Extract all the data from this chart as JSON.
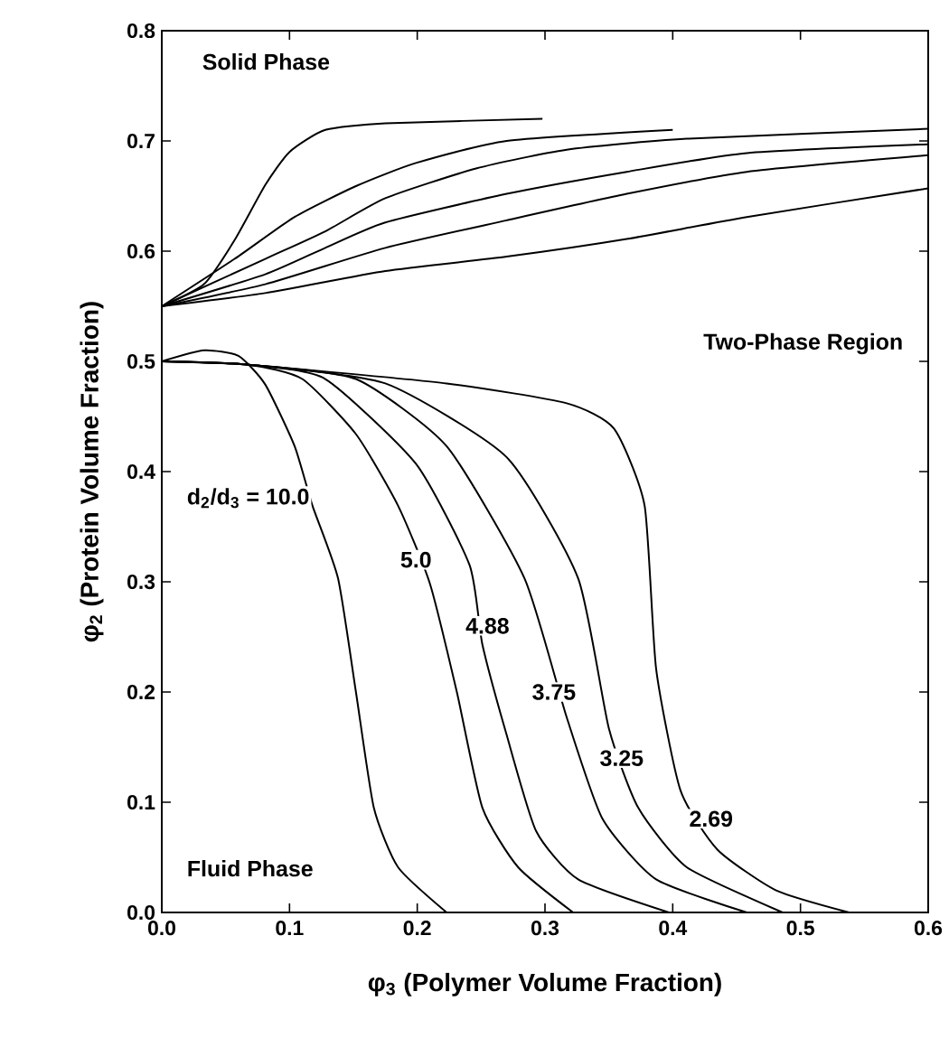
{
  "chart_data": {
    "type": "line",
    "xlabel": "φ$_{3}$ (Polymer Volume Fraction)",
    "ylabel": "φ$_{2}$ (Protein Volume Fraction)",
    "xlim": [
      0,
      0.6
    ],
    "ylim": [
      0,
      0.8
    ],
    "xticks": [
      {
        "value": 0,
        "label": "0.0"
      },
      0.1,
      0.2,
      0.3,
      0.4,
      0.5,
      0.6
    ],
    "yticks": [
      {
        "value": 0,
        "label": "0.0"
      },
      0.1,
      0.2,
      0.3,
      0.4,
      0.5,
      0.6,
      0.7,
      0.8
    ],
    "grid": false,
    "marker": "none",
    "line_style": "solid",
    "series": [
      {
        "color": "#000000",
        "x": [
          0,
          0.033,
          0.057,
          0.081,
          0.1,
          0.128,
          0.175,
          0.298
        ],
        "values": [
          0.55,
          0.57,
          0.61,
          0.66,
          0.69,
          0.71,
          0.716,
          0.72
        ]
      },
      {
        "color": "#000000",
        "x": [
          0,
          0.057,
          0.104,
          0.152,
          0.199,
          0.27,
          0.4
        ],
        "values": [
          0.55,
          0.593,
          0.631,
          0.659,
          0.68,
          0.7,
          0.71
        ]
      },
      {
        "color": "#000000",
        "x": [
          0,
          0.081,
          0.128,
          0.175,
          0.246,
          0.317,
          0.411,
          0.6
        ],
        "values": [
          0.55,
          0.593,
          0.618,
          0.648,
          0.675,
          0.692,
          0.702,
          0.711
        ]
      },
      {
        "color": "#000000",
        "x": [
          0,
          0.081,
          0.128,
          0.175,
          0.27,
          0.364,
          0.458,
          0.6
        ],
        "values": [
          0.55,
          0.579,
          0.603,
          0.626,
          0.652,
          0.672,
          0.689,
          0.697
        ]
      },
      {
        "color": "#000000",
        "x": [
          0,
          0.081,
          0.175,
          0.27,
          0.364,
          0.458,
          0.6
        ],
        "values": [
          0.55,
          0.57,
          0.603,
          0.628,
          0.652,
          0.672,
          0.687
        ]
      },
      {
        "color": "#000000",
        "x": [
          0,
          0.081,
          0.175,
          0.27,
          0.364,
          0.458,
          0.6
        ],
        "values": [
          0.55,
          0.562,
          0.582,
          0.595,
          0.611,
          0.631,
          0.657
        ]
      },
      {
        "color": "#000000",
        "x": [
          0,
          0.033,
          0.06,
          0.081,
          0.104,
          0.118,
          0.138,
          0.152,
          0.166,
          0.185,
          0.223
        ],
        "values": [
          0.5,
          0.51,
          0.505,
          0.479,
          0.423,
          0.369,
          0.303,
          0.2,
          0.095,
          0.041,
          0
        ]
      },
      {
        "color": "#000000",
        "x": [
          0,
          0.068,
          0.11,
          0.152,
          0.185,
          0.21,
          0.231,
          0.251,
          0.279,
          0.322
        ],
        "values": [
          0.5,
          0.497,
          0.484,
          0.434,
          0.369,
          0.298,
          0.2,
          0.095,
          0.041,
          0
        ]
      },
      {
        "color": "#000000",
        "x": [
          0,
          0.068,
          0.128,
          0.199,
          0.241,
          0.251,
          0.27,
          0.293,
          0.326,
          0.397
        ],
        "values": [
          0.5,
          0.497,
          0.484,
          0.407,
          0.315,
          0.243,
          0.161,
          0.074,
          0.03,
          0
        ]
      },
      {
        "color": "#000000",
        "x": [
          0,
          0.068,
          0.152,
          0.223,
          0.284,
          0.317,
          0.345,
          0.387,
          0.458
        ],
        "values": [
          0.5,
          0.497,
          0.484,
          0.423,
          0.303,
          0.177,
          0.085,
          0.03,
          0
        ]
      },
      {
        "color": "#000000",
        "x": [
          0,
          0.068,
          0.175,
          0.27,
          0.326,
          0.35,
          0.373,
          0.411,
          0.486
        ],
        "values": [
          0.5,
          0.497,
          0.48,
          0.413,
          0.303,
          0.167,
          0.095,
          0.041,
          0
        ]
      },
      {
        "color": "#000000",
        "x": [
          0,
          0.068,
          0.223,
          0.317,
          0.354,
          0.378,
          0.387,
          0.406,
          0.435,
          0.481,
          0.538
        ],
        "values": [
          0.5,
          0.497,
          0.48,
          0.462,
          0.439,
          0.369,
          0.221,
          0.111,
          0.057,
          0.02,
          0
        ]
      }
    ],
    "annotations": [
      "Solid Phase",
      "Two-Phase Region",
      "Fluid Phase",
      "d$_{2}$/d$_{3}$ = 10.0",
      {
        "text": "5.0",
        "x": 0.199,
        "y": 0.32
      },
      {
        "text": "4.88",
        "x": 0.255,
        "y": 0.26
      },
      {
        "text": "3.75",
        "x": 0.307,
        "y": 0.2
      },
      {
        "text": "3.25",
        "x": 0.36,
        "y": 0.14
      },
      {
        "text": "2.69",
        "x": 0.43,
        "y": 0.085
      }
    ]
  }
}
